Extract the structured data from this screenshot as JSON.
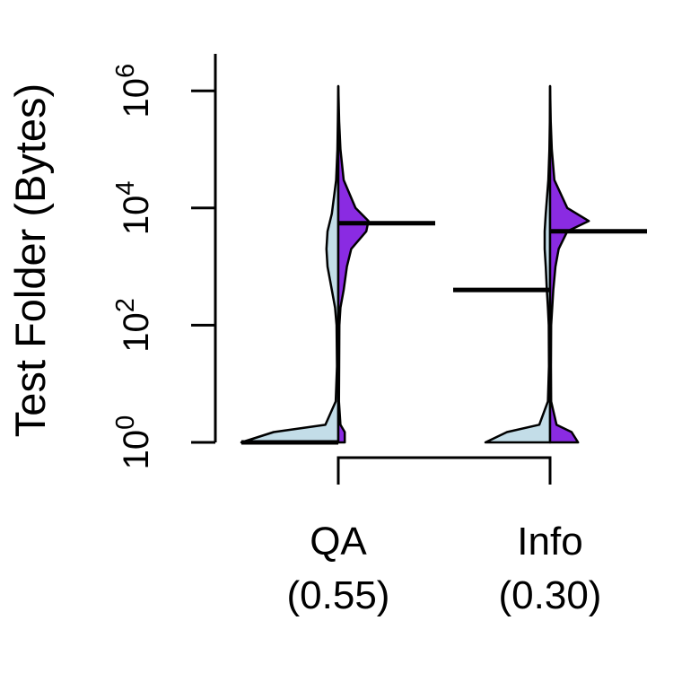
{
  "chart_data": {
    "type": "split-violin",
    "title": "",
    "ylabel": "Test Folder (Bytes)",
    "xlabel": "",
    "y_scale": "log10",
    "ylim": [
      1,
      2000000
    ],
    "y_ticks": [
      {
        "value": 1,
        "base": "10",
        "exp": "0"
      },
      {
        "value": 100,
        "base": "10",
        "exp": "2"
      },
      {
        "value": 10000,
        "base": "10",
        "exp": "4"
      },
      {
        "value": 1000000,
        "base": "10",
        "exp": "6"
      }
    ],
    "colors": {
      "left_half": "#c3dde8",
      "right_half": "#8a2be2",
      "outline": "#000000",
      "median_line": "#000000"
    },
    "groups": [
      {
        "label": "QA",
        "sublabel": "(0.55)",
        "left_median": 1,
        "right_median": 5500,
        "left_shape": [
          [
            1,
            0.45
          ],
          [
            1.5,
            0.3
          ],
          [
            2,
            0.06
          ],
          [
            5,
            0.012
          ],
          [
            20,
            0.006
          ],
          [
            100,
            0.008
          ],
          [
            200,
            0.015
          ],
          [
            400,
            0.03
          ],
          [
            1000,
            0.05
          ],
          [
            2000,
            0.055
          ],
          [
            4000,
            0.05
          ],
          [
            8000,
            0.03
          ],
          [
            30000,
            0.01
          ],
          [
            100000,
            0.004
          ],
          [
            300000,
            0.002
          ],
          [
            1200000,
            0.0
          ]
        ],
        "right_shape": [
          [
            1,
            0.03
          ],
          [
            1.5,
            0.03
          ],
          [
            2,
            0.01
          ],
          [
            5,
            0.003
          ],
          [
            20,
            0.004
          ],
          [
            100,
            0.005
          ],
          [
            200,
            0.01
          ],
          [
            400,
            0.025
          ],
          [
            1000,
            0.04
          ],
          [
            2000,
            0.06
          ],
          [
            4000,
            0.13
          ],
          [
            6000,
            0.14
          ],
          [
            10000,
            0.08
          ],
          [
            30000,
            0.025
          ],
          [
            100000,
            0.01
          ],
          [
            300000,
            0.004
          ],
          [
            1200000,
            0.0
          ]
        ]
      },
      {
        "label": "Info",
        "sublabel": "(0.30)",
        "left_median": 400,
        "right_median": 4000,
        "left_shape": [
          [
            1,
            0.3
          ],
          [
            1.5,
            0.2
          ],
          [
            2,
            0.05
          ],
          [
            5,
            0.01
          ],
          [
            20,
            0.005
          ],
          [
            100,
            0.006
          ],
          [
            200,
            0.01
          ],
          [
            400,
            0.015
          ],
          [
            1000,
            0.02
          ],
          [
            2000,
            0.025
          ],
          [
            4000,
            0.025
          ],
          [
            8000,
            0.02
          ],
          [
            30000,
            0.008
          ],
          [
            100000,
            0.003
          ],
          [
            300000,
            0.001
          ],
          [
            1200000,
            0.0
          ]
        ],
        "right_shape": [
          [
            1,
            0.13
          ],
          [
            1.5,
            0.1
          ],
          [
            2,
            0.03
          ],
          [
            5,
            0.005
          ],
          [
            20,
            0.004
          ],
          [
            100,
            0.005
          ],
          [
            200,
            0.01
          ],
          [
            400,
            0.015
          ],
          [
            1000,
            0.025
          ],
          [
            2000,
            0.04
          ],
          [
            4000,
            0.08
          ],
          [
            6000,
            0.18
          ],
          [
            10000,
            0.08
          ],
          [
            30000,
            0.02
          ],
          [
            100000,
            0.008
          ],
          [
            300000,
            0.003
          ],
          [
            1200000,
            0.0
          ]
        ]
      }
    ],
    "comparison_bracket": true
  }
}
